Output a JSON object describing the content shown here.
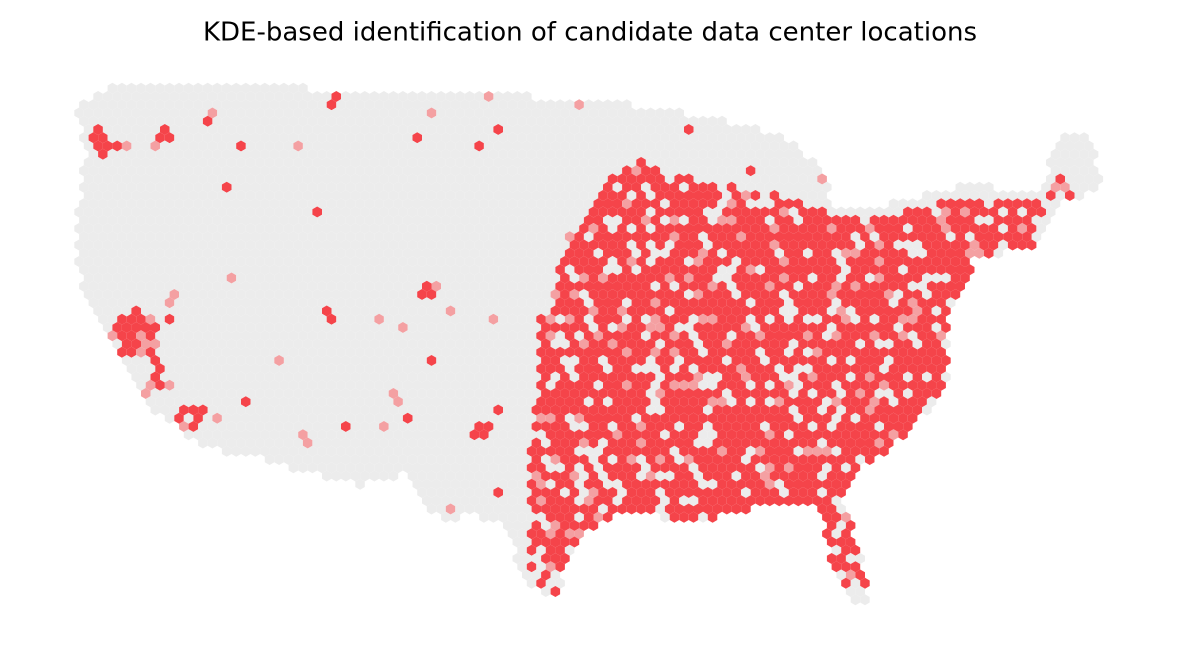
{
  "title": "KDE-based identification of candidate data center locations"
}
